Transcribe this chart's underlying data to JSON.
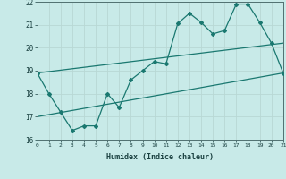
{
  "xlabel": "Humidex (Indice chaleur)",
  "ylabel": "",
  "xlim": [
    0,
    21
  ],
  "ylim": [
    16,
    22
  ],
  "xtick_labels": [
    "0",
    "1",
    "2",
    "3",
    "4",
    "5",
    "6",
    "7",
    "8",
    "9",
    "10",
    "11",
    "12",
    "13",
    "14",
    "15",
    "16",
    "17",
    "18",
    "19",
    "20",
    "21"
  ],
  "ytick_labels": [
    "16",
    "17",
    "18",
    "19",
    "20",
    "21",
    "22"
  ],
  "background_color": "#c8eae8",
  "grid_color": "#b8d8d4",
  "line_color": "#1a7870",
  "main_line_x": [
    0,
    1,
    2,
    3,
    4,
    5,
    6,
    7,
    8,
    9,
    10,
    11,
    12,
    13,
    14,
    15,
    16,
    17,
    18,
    19,
    20,
    21
  ],
  "main_line_y": [
    18.9,
    18.0,
    17.2,
    16.4,
    16.6,
    16.6,
    18.0,
    17.4,
    18.6,
    19.0,
    19.4,
    19.3,
    21.05,
    21.5,
    21.1,
    20.6,
    20.75,
    21.9,
    21.9,
    21.1,
    20.2,
    18.9
  ],
  "reg_line1_x": [
    0,
    21
  ],
  "reg_line1_y": [
    18.9,
    20.2
  ],
  "reg_line2_x": [
    0,
    21
  ],
  "reg_line2_y": [
    17.0,
    18.9
  ]
}
